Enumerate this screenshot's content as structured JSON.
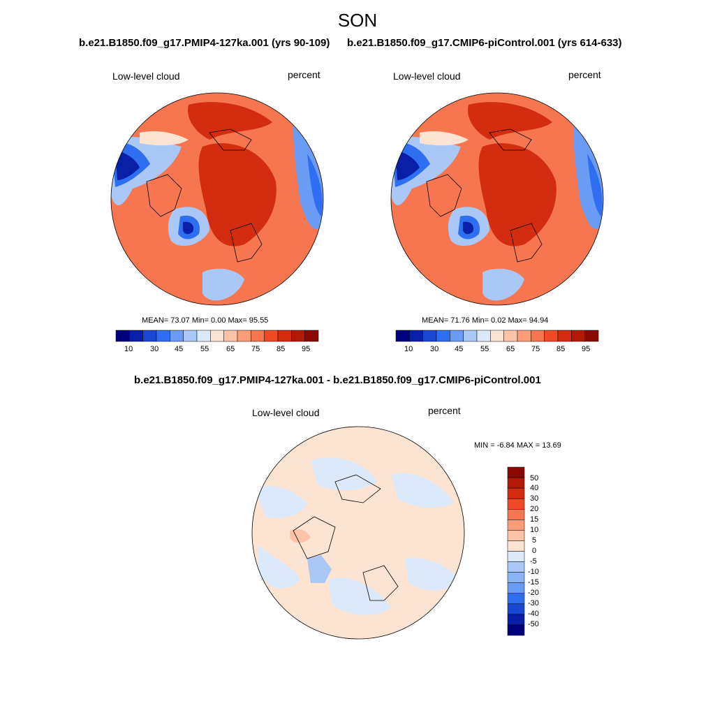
{
  "season": "SON",
  "panels": [
    {
      "case_title": "b.e21.B1850.f09_g17.PMIP4-127ka.001 (yrs 90-109)",
      "variable": "Low-level cloud",
      "units": "percent",
      "stats": {
        "label": "MEAN=  73.07  Min=   0.00  Max=  95.55",
        "mean": 73.07,
        "min": 0.0,
        "max": 95.55
      }
    },
    {
      "case_title": "b.e21.B1850.f09_g17.CMIP6-piControl.001 (yrs 614-633)",
      "variable": "Low-level cloud",
      "units": "percent",
      "stats": {
        "label": "MEAN=  71.76  Min=   0.02  Max=  94.94",
        "mean": 71.76,
        "min": 0.02,
        "max": 94.94
      }
    }
  ],
  "difference": {
    "title": "b.e21.B1850.f09_g17.PMIP4-127ka.001 - b.e21.B1850.f09_g17.CMIP6-piControl.001",
    "variable": "Low-level cloud",
    "units": "percent",
    "stats": {
      "label": "MIN =  -6.84 MAX =  13.69",
      "min": -6.84,
      "max": 13.69
    }
  },
  "colorbar_abs": {
    "labels": [
      "10",
      "30",
      "45",
      "55",
      "65",
      "75",
      "85",
      "95"
    ],
    "colors": [
      "#00007f",
      "#0a1fa8",
      "#1947d1",
      "#2f6ef0",
      "#6b9cf5",
      "#a9c7f7",
      "#dbe9fb",
      "#fde3d2",
      "#fcc3a6",
      "#fa9d78",
      "#f6764f",
      "#ee4a25",
      "#d42c0f",
      "#b01a06",
      "#8a0a02"
    ]
  },
  "colorbar_diff": {
    "labels": [
      "50",
      "40",
      "30",
      "20",
      "15",
      "10",
      "5",
      "0",
      "-5",
      "-10",
      "-15",
      "-20",
      "-30",
      "-40",
      "-50"
    ],
    "colors": [
      "#8a0a02",
      "#b01a06",
      "#d42c0f",
      "#ee4a25",
      "#f6764f",
      "#fa9d78",
      "#fcc3a6",
      "#fde3d2",
      "#dbe9fb",
      "#a9c7f7",
      "#8cb3f6",
      "#6b9cf5",
      "#2f6ef0",
      "#1947d1",
      "#0a1fa8",
      "#00007f"
    ]
  }
}
